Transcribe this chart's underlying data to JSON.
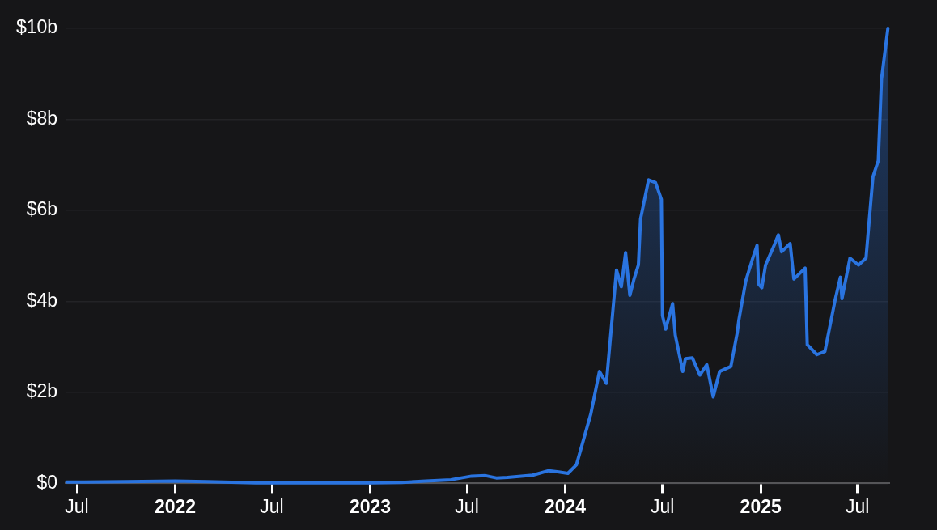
{
  "chart_data": {
    "type": "area",
    "x": [
      "2021-06-12",
      "2021-07-15",
      "2021-10-01",
      "2022-01-01",
      "2022-03-01",
      "2022-06-01",
      "2022-10-01",
      "2023-01-01",
      "2023-03-01",
      "2023-04-15",
      "2023-06-01",
      "2023-07-10",
      "2023-08-05",
      "2023-08-25",
      "2023-09-15",
      "2023-11-01",
      "2023-12-01",
      "2023-12-20",
      "2024-01-06",
      "2024-01-22",
      "2024-02-18",
      "2024-03-05",
      "2024-03-18",
      "2024-04-06",
      "2024-04-15",
      "2024-04-23",
      "2024-05-01",
      "2024-05-09",
      "2024-05-17",
      "2024-05-21",
      "2024-06-05",
      "2024-06-18",
      "2024-06-29",
      "2024-07-01",
      "2024-07-07",
      "2024-07-20",
      "2024-07-25",
      "2024-08-08",
      "2024-08-13",
      "2024-08-26",
      "2024-09-09",
      "2024-09-22",
      "2024-10-04",
      "2024-10-16",
      "2024-11-06",
      "2024-11-18",
      "2024-11-21",
      "2024-12-04",
      "2024-12-17",
      "2024-12-25",
      "2024-12-28",
      "2025-01-03",
      "2025-01-10",
      "2025-01-26",
      "2025-02-03",
      "2025-02-09",
      "2025-02-25",
      "2025-03-04",
      "2025-03-25",
      "2025-03-29",
      "2025-04-16",
      "2025-05-01",
      "2025-05-20",
      "2025-05-30",
      "2025-06-02",
      "2025-06-17",
      "2025-07-03",
      "2025-07-17",
      "2025-07-30",
      "2025-08-09",
      "2025-08-15",
      "2025-08-27"
    ],
    "series": [
      {
        "color": "#2a74e0",
        "values": [
          0.03,
          0.03,
          0.04,
          0.05,
          0.04,
          0.01,
          0.01,
          0.01,
          0.02,
          0.05,
          0.08,
          0.16,
          0.17,
          0.12,
          0.13,
          0.18,
          0.28,
          0.25,
          0.22,
          0.41,
          1.53,
          2.46,
          2.2,
          4.69,
          4.32,
          5.07,
          4.13,
          4.5,
          4.8,
          5.81,
          6.67,
          6.61,
          6.24,
          3.69,
          3.39,
          3.95,
          3.26,
          2.46,
          2.74,
          2.76,
          2.38,
          2.61,
          1.9,
          2.46,
          2.57,
          3.31,
          3.59,
          4.45,
          4.95,
          5.23,
          4.38,
          4.3,
          4.8,
          5.23,
          5.46,
          5.09,
          5.27,
          4.49,
          4.73,
          3.05,
          2.83,
          2.9,
          4.02,
          4.53,
          4.06,
          4.95,
          4.8,
          4.95,
          6.74,
          7.09,
          8.88,
          10
        ]
      }
    ],
    "xlim": [
      "2021-06-10",
      "2025-08-28"
    ],
    "xticks": [
      {
        "value": "2021-07-01",
        "label": "Jul"
      },
      {
        "value": "2022-01-01",
        "label": "2022"
      },
      {
        "value": "2022-07-01",
        "label": "Jul"
      },
      {
        "value": "2023-01-01",
        "label": "2023"
      },
      {
        "value": "2023-07-01",
        "label": "Jul"
      },
      {
        "value": "2024-01-01",
        "label": "2024"
      },
      {
        "value": "2024-07-01",
        "label": "Jul"
      },
      {
        "value": "2025-01-01",
        "label": "2025"
      },
      {
        "value": "2025-07-01",
        "label": "Jul"
      }
    ],
    "ylim": [
      0,
      10
    ],
    "yticks": [
      {
        "value": 0,
        "label": "$0"
      },
      {
        "value": 2,
        "label": "$2b"
      },
      {
        "value": 4,
        "label": "$4b"
      },
      {
        "value": 6,
        "label": "$6b"
      },
      {
        "value": 8,
        "label": "$8b"
      },
      {
        "value": 10,
        "label": "$10b"
      }
    ],
    "grid": "y",
    "legend": false,
    "marker": "none",
    "line_style": "solid"
  }
}
